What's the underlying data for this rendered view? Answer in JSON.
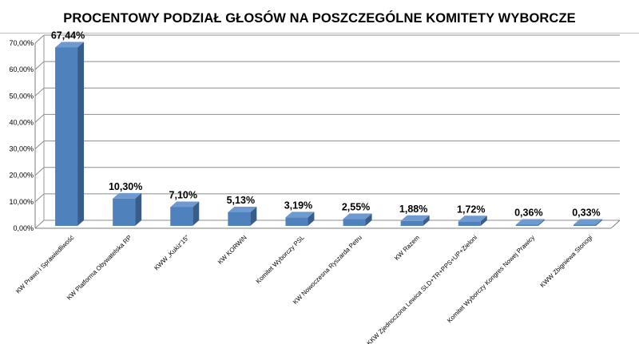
{
  "chart_data": {
    "type": "bar",
    "title": "PROCENTOWY PODZIAŁ GŁOSÓW NA POSZCZEGÓLNE KOMITETY WYBORCZE",
    "xlabel": "",
    "ylabel": "",
    "ylim": [
      0,
      70
    ],
    "yticks": [
      "0,00%",
      "10,00%",
      "20,00%",
      "30,00%",
      "40,00%",
      "50,00%",
      "60,00%",
      "70,00%"
    ],
    "grid": true,
    "legend": "none",
    "categories": [
      "KW Prawo i Sprawiedliwość",
      "KW Platforma Obywatelska RP",
      "KWW „Kukiz'15”",
      "KW KORWiN",
      "Komitet Wyborczy PSL",
      "KW Nowoczesna Ryszarda Petru",
      "KW Razem",
      "KKW Zjednoczona Lewica SLD+TR+PPS+UP+Zieloni",
      "Komitet Wyborczy Kongres Nowej Prawicy",
      "KWW Zbigniewa Stonogi"
    ],
    "values": [
      67.44,
      10.3,
      7.1,
      5.13,
      3.19,
      2.55,
      1.88,
      1.72,
      0.36,
      0.33
    ],
    "data_labels": [
      "67,44%",
      "10,30%",
      "7,10%",
      "5,13%",
      "3,19%",
      "2,55%",
      "1,88%",
      "1,72%",
      "0,36%",
      "0,33%"
    ],
    "colors": {
      "bar_front": "#4f81bd",
      "bar_top": "#6f9ad0",
      "bar_side": "#385d8a",
      "grid": "#8c8c8c"
    }
  }
}
